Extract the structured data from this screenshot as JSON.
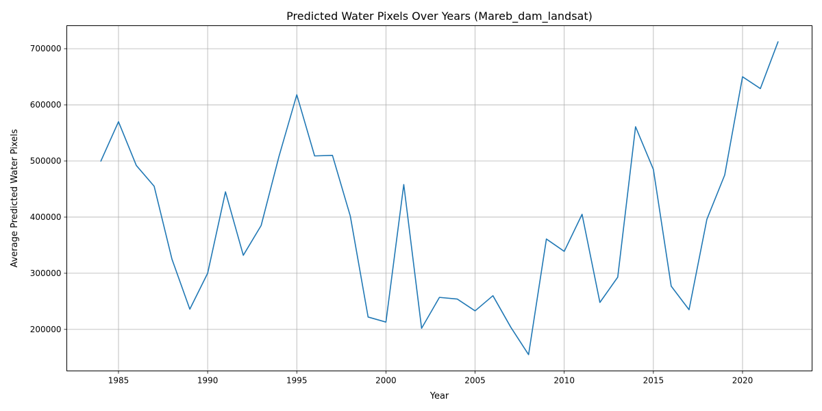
{
  "chart_data": {
    "type": "line",
    "title": "Predicted Water Pixels Over Years (Mareb_dam_landsat)",
    "xlabel": "Year",
    "ylabel": "Average Predicted Water Pixels",
    "grid": true,
    "xlim": [
      1982.1,
      2023.9
    ],
    "ylim": [
      126000,
      741000
    ],
    "xticks": [
      1985,
      1990,
      1995,
      2000,
      2005,
      2010,
      2015,
      2020
    ],
    "yticks": [
      200000,
      300000,
      400000,
      500000,
      600000,
      700000
    ],
    "line_color": "#1f77b4",
    "series": [
      {
        "x": [
          1984,
          1985,
          1986,
          1987,
          1988,
          1989,
          1990,
          1991,
          1992,
          1993,
          1994,
          1995,
          1996,
          1997,
          1998,
          1999,
          2000,
          2001,
          2002,
          2003,
          2004,
          2005,
          2006,
          2007,
          2008,
          2009,
          2010,
          2011,
          2012,
          2013,
          2014,
          2015,
          2016,
          2017,
          2018,
          2019,
          2020,
          2021,
          2022
        ],
        "values": [
          499000,
          570000,
          492000,
          455000,
          325000,
          236000,
          300000,
          445000,
          332000,
          385000,
          508000,
          618000,
          509000,
          510000,
          402000,
          222000,
          213000,
          458000,
          202000,
          257000,
          254000,
          233000,
          260000,
          204000,
          155000,
          361000,
          339000,
          405000,
          248000,
          293000,
          561000,
          485000,
          277000,
          235000,
          396000,
          475000,
          650000,
          629000,
          713000
        ]
      }
    ]
  }
}
